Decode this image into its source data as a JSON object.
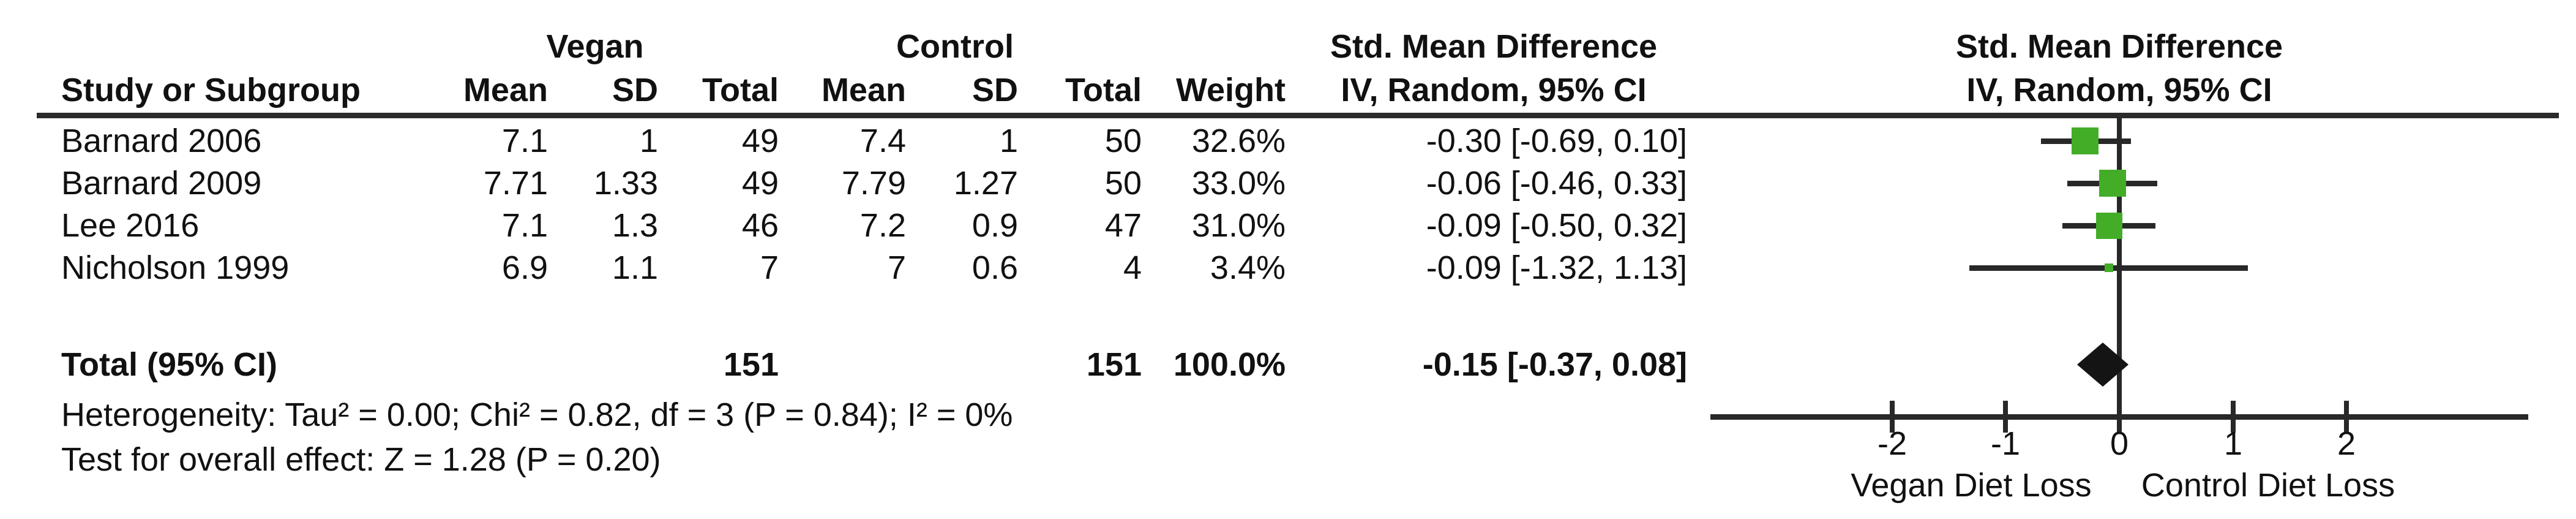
{
  "header": {
    "group_vegan": "Vegan",
    "group_control": "Control",
    "smd_text_title": "Std. Mean Difference",
    "smd_text_subtitle": "IV, Random, 95% CI",
    "smd_plot_title": "Std. Mean Difference",
    "smd_plot_subtitle": "IV, Random, 95% CI",
    "col_study": "Study or Subgroup",
    "col_vegan_mean": "Mean",
    "col_vegan_sd": "SD",
    "col_vegan_total": "Total",
    "col_control_mean": "Mean",
    "col_control_sd": "SD",
    "col_control_total": "Total",
    "col_weight": "Weight"
  },
  "footer": {
    "heterogeneity": "Heterogeneity: Tau² = 0.00; Chi² = 0.82, df = 3 (P = 0.84); I² = 0%",
    "overall_effect": "Test for overall effect: Z = 1.28 (P = 0.20)"
  },
  "chart_data": {
    "type": "forest",
    "effect_measure": "Std. Mean Difference",
    "method": "IV, Random, 95% CI",
    "studies": [
      {
        "name": "Barnard 2006",
        "vegan_mean": "7.1",
        "vegan_sd": "1",
        "vegan_total": "49",
        "control_mean": "7.4",
        "control_sd": "1",
        "control_total": "50",
        "weight": "32.6%",
        "weight_pct": 32.6,
        "smd": -0.3,
        "ci_low": -0.69,
        "ci_high": 0.1,
        "ci_text": "-0.30 [-0.69, 0.10]"
      },
      {
        "name": "Barnard 2009",
        "vegan_mean": "7.71",
        "vegan_sd": "1.33",
        "vegan_total": "49",
        "control_mean": "7.79",
        "control_sd": "1.27",
        "control_total": "50",
        "weight": "33.0%",
        "weight_pct": 33.0,
        "smd": -0.06,
        "ci_low": -0.46,
        "ci_high": 0.33,
        "ci_text": "-0.06 [-0.46, 0.33]"
      },
      {
        "name": "Lee 2016",
        "vegan_mean": "7.1",
        "vegan_sd": "1.3",
        "vegan_total": "46",
        "control_mean": "7.2",
        "control_sd": "0.9",
        "control_total": "47",
        "weight": "31.0%",
        "weight_pct": 31.0,
        "smd": -0.09,
        "ci_low": -0.5,
        "ci_high": 0.32,
        "ci_text": "-0.09 [-0.50, 0.32]"
      },
      {
        "name": "Nicholson 1999",
        "vegan_mean": "6.9",
        "vegan_sd": "1.1",
        "vegan_total": "7",
        "control_mean": "7",
        "control_sd": "0.6",
        "control_total": "4",
        "weight": "3.4%",
        "weight_pct": 3.4,
        "smd": -0.09,
        "ci_low": -1.32,
        "ci_high": 1.13,
        "ci_text": "-0.09 [-1.32, 1.13]"
      }
    ],
    "total": {
      "label": "Total (95% CI)",
      "vegan_total": "151",
      "control_total": "151",
      "weight": "100.0%",
      "smd": -0.15,
      "ci_low": -0.37,
      "ci_high": 0.08,
      "ci_text": "-0.15 [-0.37, 0.08]"
    },
    "axis": {
      "min": -3.6,
      "max": 3.6,
      "ticks": [
        {
          "v": -2,
          "label": "-2"
        },
        {
          "v": -1,
          "label": "-1"
        },
        {
          "v": 0,
          "label": "0"
        },
        {
          "v": 1,
          "label": "1"
        },
        {
          "v": 2,
          "label": "2"
        }
      ],
      "label_left": "Vegan Diet Loss",
      "label_right": "Control Diet Loss",
      "grid": false
    },
    "marker_color": "#43ad28",
    "line_color": "#282828",
    "diamond_color": "#141414"
  }
}
